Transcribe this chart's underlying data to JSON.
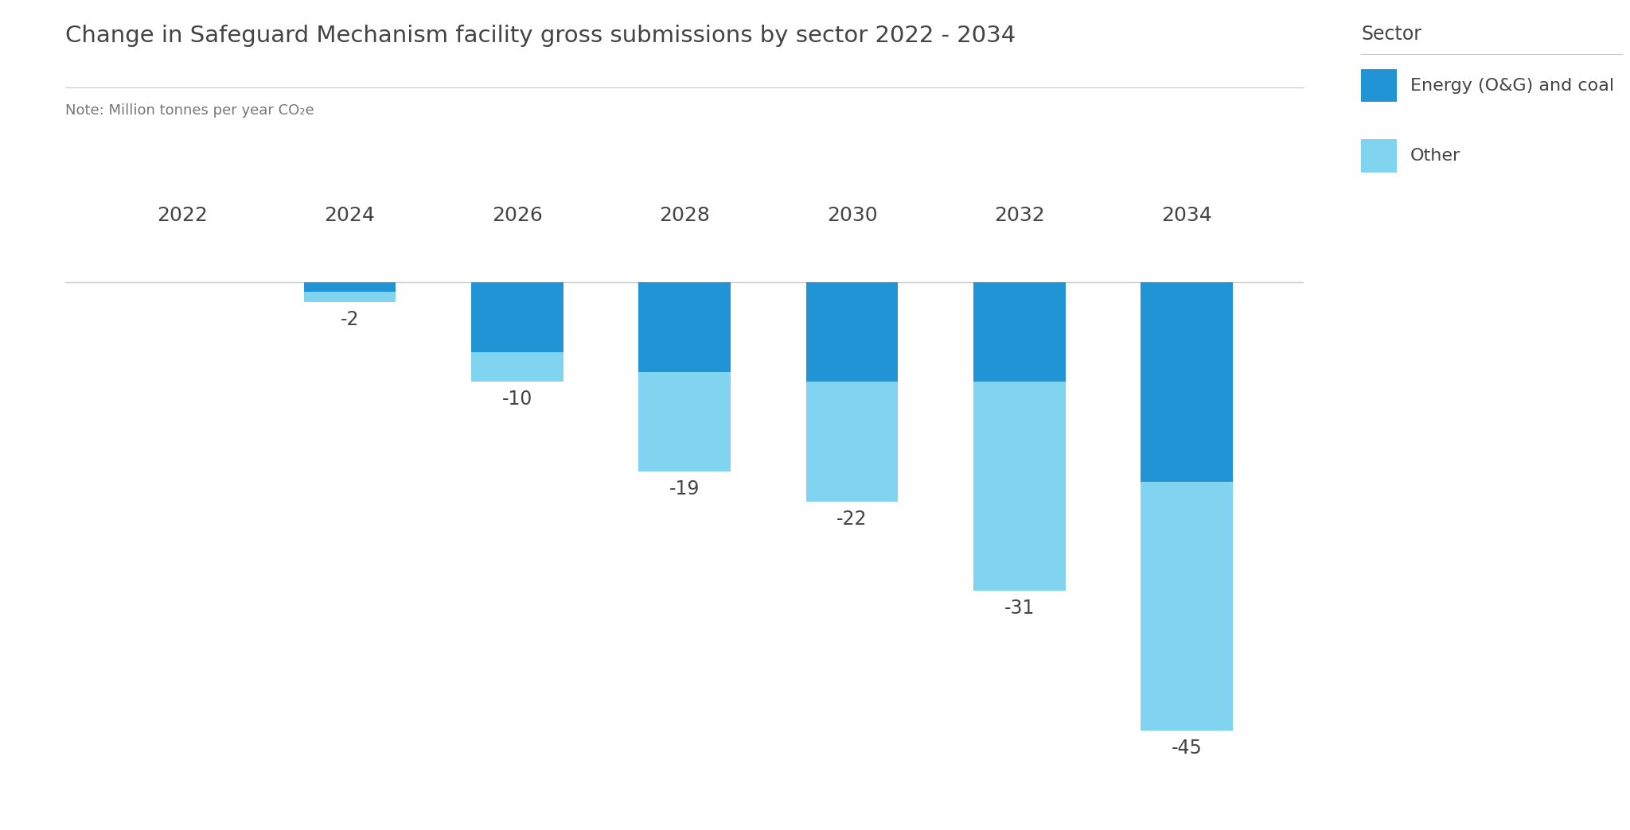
{
  "title": "Change in Safeguard Mechanism facility gross submissions by sector 2022 - 2034",
  "note": "Note: Million tonnes per year CO₂e",
  "legend_title": "Sector",
  "legend_entries": [
    "Energy (O&G) and coal",
    "Other"
  ],
  "color_energy": "#2094d4",
  "color_other": "#80d4f0",
  "background_color": "#ffffff",
  "text_color": "#444444",
  "note_color": "#777777",
  "line_color": "#c8c8c8",
  "categories": [
    2022,
    2024,
    2026,
    2028,
    2030,
    2032,
    2034
  ],
  "energy_values": [
    0,
    -1,
    -7,
    -9,
    -10,
    -10,
    -20
  ],
  "other_values": [
    0,
    -1,
    -3,
    -10,
    -12,
    -21,
    -25
  ],
  "totals": [
    null,
    -2,
    -10,
    -19,
    -22,
    -31,
    -45
  ],
  "ylim": [
    -50,
    5
  ],
  "bar_width": 0.55,
  "title_fontsize": 21,
  "note_fontsize": 13,
  "tick_fontsize": 18,
  "label_fontsize": 17,
  "legend_title_fontsize": 17,
  "legend_item_fontsize": 16
}
